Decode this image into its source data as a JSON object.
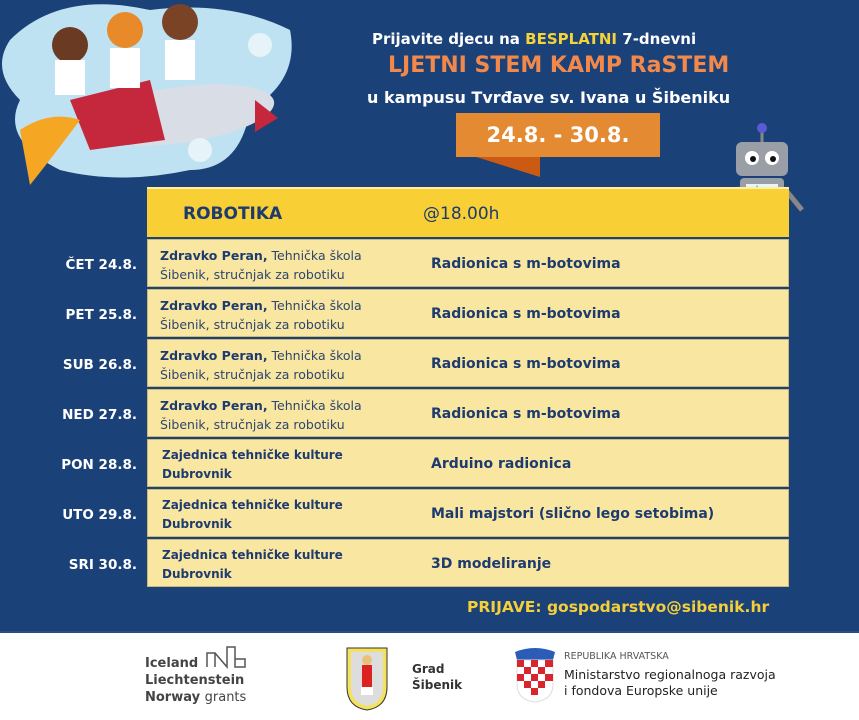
{
  "header": {
    "line1_pre": "Prijavite djecu na",
    "line1_highlight": "BESPLATNI",
    "line1_post": "7-dnevni",
    "line2": "LJETNI STEM KAMP  RaSTEM",
    "line3": "u kampusu Tvrđave sv.  Ivana u Šibeniku",
    "dates": "24.8.  - 30.8."
  },
  "table": {
    "title": "ROBOTIKA",
    "time": "@18.00h",
    "rows": [
      {
        "day": "ČET 24.8.",
        "name": "Zdravko Peran,",
        "org": " Tehnička škola",
        "org2": "Šibenik, stručnjak za robotiku",
        "activity": "Radionica s m-botovima"
      },
      {
        "day": "PET 25.8.",
        "name": "Zdravko Peran,",
        "org": " Tehnička škola",
        "org2": "Šibenik, stručnjak za robotiku",
        "activity": "Radionica s m-botovima"
      },
      {
        "day": "SUB 26.8.",
        "name": "Zdravko Peran,",
        "org": " Tehnička škola",
        "org2": "Šibenik, stručnjak za robotiku",
        "activity": "Radionica s m-botovima"
      },
      {
        "day": "NED 27.8.",
        "name": "Zdravko Peran,",
        "org": " Tehnička škola",
        "org2": "Šibenik, stručnjak za robotiku",
        "activity": "Radionica s m-botovima"
      },
      {
        "day": "PON 28.8.",
        "org": "Zajednica tehničke kulture",
        "org2": "Dubrovnik",
        "activity": "Arduino radionica"
      },
      {
        "day": "UTO 29.8.",
        "org": "Zajednica tehničke kulture",
        "org2": "Dubrovnik",
        "activity": "Mali majstori (slično lego setobima)"
      },
      {
        "day": "SRI 30.8.",
        "org": "Zajednica tehničke kulture",
        "org2": "Dubrovnik",
        "activity": "3D modeliranje"
      }
    ]
  },
  "signup": "PRIJAVE: gospodarstvo@sibenik.hr",
  "footer": {
    "eea": [
      "Iceland",
      "Liechtenstein",
      "Norway",
      "grants"
    ],
    "city": [
      "Grad",
      "Šibenik"
    ],
    "ministry_top": "REPUBLIKA HRVATSKA",
    "ministry": [
      "Ministarstvo regionalnoga razvoja",
      "i fondova Europske unije"
    ]
  },
  "colors": {
    "background": "#1b4179",
    "header_yellow": "#f9cf36",
    "row_fill": "#f9e6a1",
    "accent_orange": "#e38a32"
  }
}
